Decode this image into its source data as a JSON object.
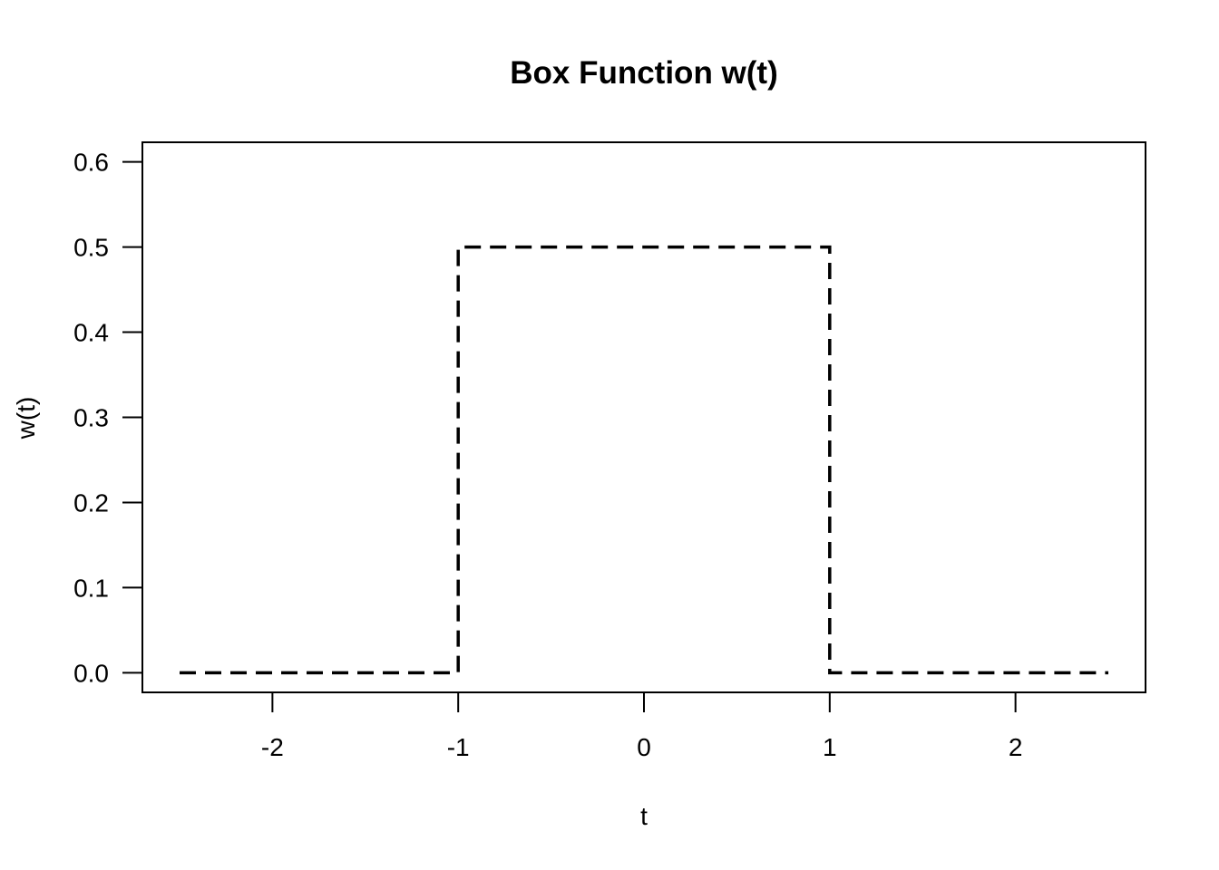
{
  "chart_data": {
    "type": "line",
    "title": "Box Function w(t)",
    "xlabel": "t",
    "ylabel": "w(t)",
    "xlim": [
      -2.7,
      2.7
    ],
    "ylim": [
      -0.023,
      0.623
    ],
    "x_ticks": [
      -2,
      -1,
      0,
      1,
      2
    ],
    "x_tick_labels": [
      "-2",
      "-1",
      "0",
      "1",
      "2"
    ],
    "y_ticks": [
      0.0,
      0.1,
      0.2,
      0.3,
      0.4,
      0.5,
      0.6
    ],
    "y_tick_labels": [
      "0.0",
      "0.1",
      "0.2",
      "0.3",
      "0.4",
      "0.5",
      "0.6"
    ],
    "grid": false,
    "line_style": "dashed",
    "line_color": "#000000",
    "series": [
      {
        "x": [
          -2.5,
          -1.0,
          -1.0,
          1.0,
          1.0,
          2.5
        ],
        "y": [
          0.0,
          0.0,
          0.5,
          0.5,
          0.0,
          0.0
        ]
      }
    ]
  }
}
